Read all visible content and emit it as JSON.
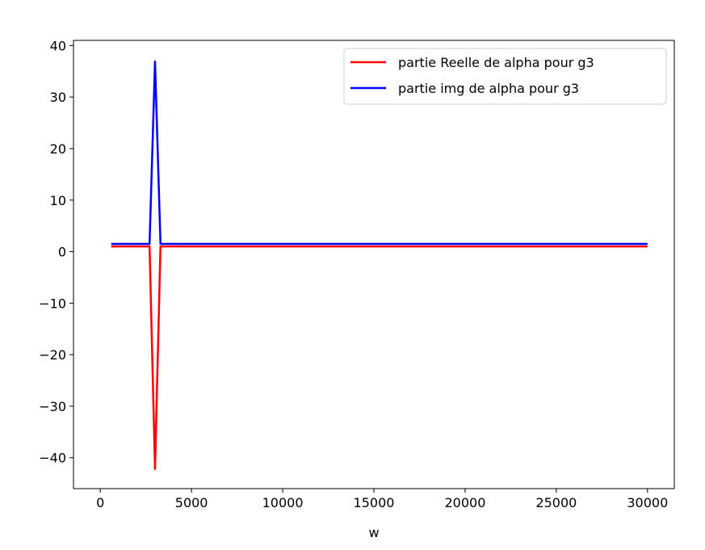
{
  "chart_data": {
    "type": "line",
    "title": "",
    "xlabel": "w",
    "ylabel": "",
    "xlim": [
      -1470,
      31470
    ],
    "ylim": [
      -46,
      41
    ],
    "xticks": [
      0,
      5000,
      10000,
      15000,
      20000,
      25000,
      30000
    ],
    "xtick_labels": [
      "0",
      "5000",
      "10000",
      "15000",
      "20000",
      "25000",
      "30000"
    ],
    "yticks": [
      40,
      30,
      20,
      10,
      0,
      -10,
      -20,
      -30,
      -40
    ],
    "ytick_labels": [
      "40",
      "30",
      "20",
      "10",
      "0",
      "−10",
      "−20",
      "−30",
      "−40"
    ],
    "grid": false,
    "legend_position": "top-right",
    "series": [
      {
        "name": "partie Reelle de alpha pour g3",
        "color": "#ff0000",
        "x": [
          600,
          2700,
          3000,
          3300,
          30000
        ],
        "y": [
          1.0,
          1.0,
          -42.2,
          1.0,
          1.0
        ]
      },
      {
        "name": "partie img de alpha pour g3",
        "color": "#0000ff",
        "x": [
          600,
          2700,
          3000,
          3300,
          30000
        ],
        "y": [
          1.5,
          1.5,
          36.9,
          1.5,
          1.5
        ]
      }
    ]
  }
}
